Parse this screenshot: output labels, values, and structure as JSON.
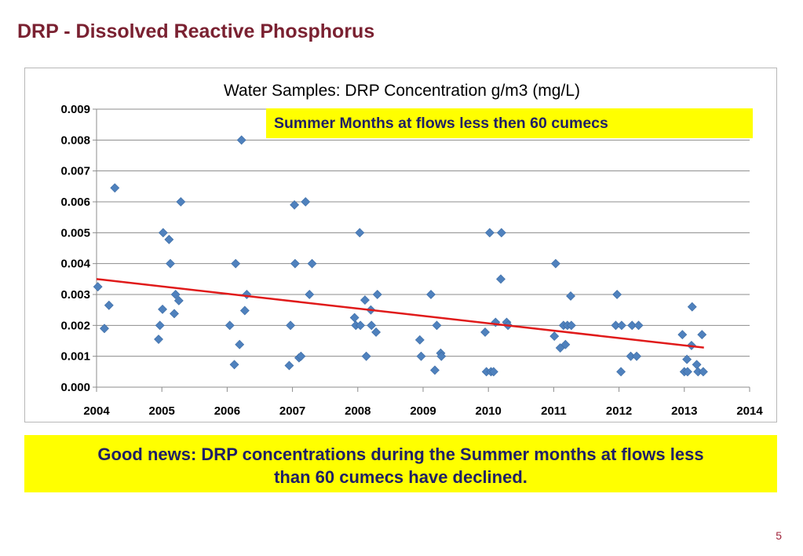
{
  "slide": {
    "title": "DRP - Dissolved Reactive Phosphorus",
    "callout": "Summer Months at flows less then 60 cumecs",
    "summary_line1": "Good news: DRP concentrations during the Summer months at flows less",
    "summary_line2": "than 60 cumecs have declined.",
    "page_number": "5"
  },
  "colors": {
    "title": "#7a2131",
    "marker": "#4f81bd",
    "trendline": "#e01a1a",
    "callout_bg": "#ffff00",
    "callout_text": "#1f1f66"
  },
  "chart_data": {
    "type": "scatter",
    "title": "Water Samples: DRP Concentration  g/m3  (mg/L)",
    "xlim": [
      2004,
      2014
    ],
    "ylim": [
      0,
      0.009
    ],
    "x_ticks": [
      "2004",
      "2005",
      "2006",
      "2007",
      "2008",
      "2009",
      "2010",
      "2011",
      "2012",
      "2013",
      "2014"
    ],
    "y_ticks": [
      "0.000",
      "0.001",
      "0.002",
      "0.003",
      "0.004",
      "0.005",
      "0.006",
      "0.007",
      "0.008",
      "0.009"
    ],
    "grid": true,
    "marker": "diamond",
    "points": [
      [
        2004.02,
        0.00325
      ],
      [
        2004.12,
        0.0019
      ],
      [
        2004.19,
        0.00265
      ],
      [
        2004.28,
        0.00645
      ],
      [
        2004.95,
        0.00155
      ],
      [
        2004.97,
        0.002
      ],
      [
        2005.01,
        0.00252
      ],
      [
        2005.02,
        0.005
      ],
      [
        2005.11,
        0.00478
      ],
      [
        2005.13,
        0.004
      ],
      [
        2005.19,
        0.00238
      ],
      [
        2005.21,
        0.003
      ],
      [
        2005.26,
        0.0028
      ],
      [
        2005.29,
        0.006
      ],
      [
        2006.04,
        0.002
      ],
      [
        2006.11,
        0.00073
      ],
      [
        2006.13,
        0.004
      ],
      [
        2006.19,
        0.00138
      ],
      [
        2006.22,
        0.008
      ],
      [
        2006.27,
        0.00248
      ],
      [
        2006.3,
        0.003
      ],
      [
        2006.95,
        0.0007
      ],
      [
        2006.97,
        0.002
      ],
      [
        2007.03,
        0.0059
      ],
      [
        2007.04,
        0.004
      ],
      [
        2007.1,
        0.00095
      ],
      [
        2007.13,
        0.001
      ],
      [
        2007.2,
        0.006
      ],
      [
        2007.26,
        0.003
      ],
      [
        2007.3,
        0.004
      ],
      [
        2007.95,
        0.00225
      ],
      [
        2007.97,
        0.002
      ],
      [
        2008.03,
        0.005
      ],
      [
        2008.04,
        0.002
      ],
      [
        2008.11,
        0.00282
      ],
      [
        2008.13,
        0.001
      ],
      [
        2008.2,
        0.0025
      ],
      [
        2008.21,
        0.002
      ],
      [
        2008.28,
        0.00178
      ],
      [
        2008.3,
        0.003
      ],
      [
        2008.95,
        0.00153
      ],
      [
        2008.97,
        0.001
      ],
      [
        2009.12,
        0.003
      ],
      [
        2009.18,
        0.00055
      ],
      [
        2009.21,
        0.002
      ],
      [
        2009.27,
        0.0011
      ],
      [
        2009.28,
        0.001
      ],
      [
        2009.95,
        0.00178
      ],
      [
        2009.97,
        0.0005
      ],
      [
        2010.02,
        0.005
      ],
      [
        2010.04,
        0.0005
      ],
      [
        2010.08,
        0.0005
      ],
      [
        2010.11,
        0.0021
      ],
      [
        2010.19,
        0.0035
      ],
      [
        2010.2,
        0.005
      ],
      [
        2010.28,
        0.0021
      ],
      [
        2010.3,
        0.002
      ],
      [
        2011.01,
        0.00165
      ],
      [
        2011.03,
        0.004
      ],
      [
        2011.1,
        0.00127
      ],
      [
        2011.15,
        0.002
      ],
      [
        2011.18,
        0.00138
      ],
      [
        2011.21,
        0.002
      ],
      [
        2011.26,
        0.00295
      ],
      [
        2011.27,
        0.002
      ],
      [
        2011.95,
        0.002
      ],
      [
        2011.97,
        0.003
      ],
      [
        2012.03,
        0.0005
      ],
      [
        2012.04,
        0.002
      ],
      [
        2012.18,
        0.001
      ],
      [
        2012.2,
        0.002
      ],
      [
        2012.27,
        0.001
      ],
      [
        2012.3,
        0.002
      ],
      [
        2012.97,
        0.0017
      ],
      [
        2013.0,
        0.0005
      ],
      [
        2013.04,
        0.0009
      ],
      [
        2013.05,
        0.0005
      ],
      [
        2013.11,
        0.00135
      ],
      [
        2013.12,
        0.0026
      ],
      [
        2013.19,
        0.00073
      ],
      [
        2013.21,
        0.0005
      ],
      [
        2013.27,
        0.0017
      ],
      [
        2013.29,
        0.0005
      ]
    ],
    "trendline": {
      "x": [
        2004.0,
        2013.3
      ],
      "y": [
        0.0035,
        0.00128
      ]
    }
  }
}
